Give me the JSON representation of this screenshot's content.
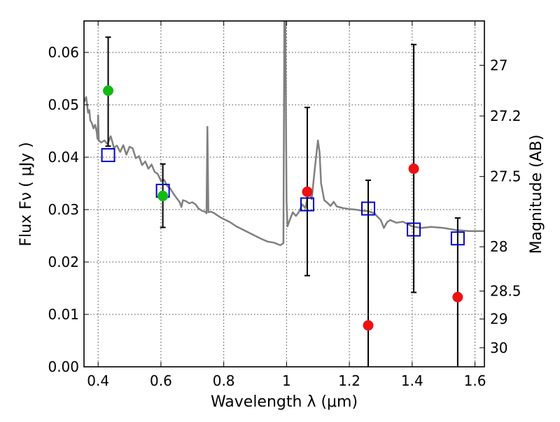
{
  "chart_data": {
    "type": "scatter",
    "xlabel": "Wavelength  λ (μm)",
    "ylabel": "Flux  Fν ( μJy )",
    "y2label": "Magnitude (AB)",
    "xlim": [
      0.355,
      1.63
    ],
    "ylim": [
      0.0,
      0.066
    ],
    "x_ticks": [
      "0.4",
      "0.6",
      "0.8",
      "1",
      "1.2",
      "1.4",
      "1.6"
    ],
    "y_ticks": [
      "0.00",
      "0.01",
      "0.02",
      "0.03",
      "0.04",
      "0.05",
      "0.06"
    ],
    "y2_ticks": [
      "27",
      "27.2",
      "27.5",
      "28",
      "28.5",
      "29",
      "30"
    ],
    "grid": true,
    "colors": {
      "spectrum": "#808080",
      "model_squares": "#0000cc",
      "green_points": "#11bb11",
      "red_points": "#ee1111",
      "errorbars": "#000000"
    },
    "series": [],
    "spectrum": [
      [
        0.355,
        0.0505
      ],
      [
        0.362,
        0.0515
      ],
      [
        0.368,
        0.0485
      ],
      [
        0.372,
        0.049
      ],
      [
        0.375,
        0.047
      ],
      [
        0.38,
        0.0465
      ],
      [
        0.385,
        0.0455
      ],
      [
        0.39,
        0.0462
      ],
      [
        0.395,
        0.045
      ],
      [
        0.398,
        0.0435
      ],
      [
        0.4,
        0.048
      ],
      [
        0.402,
        0.0432
      ],
      [
        0.41,
        0.0428
      ],
      [
        0.42,
        0.0432
      ],
      [
        0.43,
        0.0425
      ],
      [
        0.44,
        0.044
      ],
      [
        0.445,
        0.043
      ],
      [
        0.45,
        0.0418
      ],
      [
        0.46,
        0.0422
      ],
      [
        0.47,
        0.041
      ],
      [
        0.48,
        0.0423
      ],
      [
        0.49,
        0.0405
      ],
      [
        0.5,
        0.042
      ],
      [
        0.51,
        0.0417
      ],
      [
        0.52,
        0.0398
      ],
      [
        0.53,
        0.0402
      ],
      [
        0.54,
        0.0385
      ],
      [
        0.55,
        0.0392
      ],
      [
        0.56,
        0.0378
      ],
      [
        0.57,
        0.0386
      ],
      [
        0.58,
        0.0372
      ],
      [
        0.59,
        0.0368
      ],
      [
        0.6,
        0.0355
      ],
      [
        0.61,
        0.0357
      ],
      [
        0.62,
        0.0345
      ],
      [
        0.63,
        0.034
      ],
      [
        0.64,
        0.033
      ],
      [
        0.65,
        0.0322
      ],
      [
        0.66,
        0.0314
      ],
      [
        0.665,
        0.0305
      ],
      [
        0.67,
        0.0318
      ],
      [
        0.68,
        0.0316
      ],
      [
        0.69,
        0.0312
      ],
      [
        0.7,
        0.0314
      ],
      [
        0.71,
        0.031
      ],
      [
        0.72,
        0.0302
      ],
      [
        0.73,
        0.0298
      ],
      [
        0.74,
        0.0296
      ],
      [
        0.745,
        0.0293
      ],
      [
        0.748,
        0.0458
      ],
      [
        0.751,
        0.0295
      ],
      [
        0.76,
        0.0296
      ],
      [
        0.77,
        0.0293
      ],
      [
        0.78,
        0.0289
      ],
      [
        0.79,
        0.0285
      ],
      [
        0.8,
        0.0282
      ],
      [
        0.82,
        0.0276
      ],
      [
        0.84,
        0.0268
      ],
      [
        0.86,
        0.0262
      ],
      [
        0.88,
        0.0256
      ],
      [
        0.9,
        0.025
      ],
      [
        0.92,
        0.0244
      ],
      [
        0.94,
        0.0239
      ],
      [
        0.96,
        0.0237
      ],
      [
        0.98,
        0.0232
      ],
      [
        0.99,
        0.0236
      ],
      [
        0.993,
        0.066
      ],
      [
        0.996,
        0.066
      ],
      [
        1.0,
        0.0315
      ],
      [
        1.003,
        0.0268
      ],
      [
        1.01,
        0.028
      ],
      [
        1.02,
        0.0295
      ],
      [
        1.03,
        0.0288
      ],
      [
        1.04,
        0.0296
      ],
      [
        1.05,
        0.031
      ],
      [
        1.06,
        0.0303
      ],
      [
        1.07,
        0.0335
      ],
      [
        1.08,
        0.032
      ],
      [
        1.09,
        0.0378
      ],
      [
        1.1,
        0.0432
      ],
      [
        1.105,
        0.041
      ],
      [
        1.11,
        0.035
      ],
      [
        1.12,
        0.0318
      ],
      [
        1.13,
        0.0313
      ],
      [
        1.14,
        0.0307
      ],
      [
        1.15,
        0.0315
      ],
      [
        1.16,
        0.0306
      ],
      [
        1.18,
        0.0303
      ],
      [
        1.2,
        0.0301
      ],
      [
        1.22,
        0.03
      ],
      [
        1.24,
        0.0298
      ],
      [
        1.26,
        0.0297
      ],
      [
        1.28,
        0.0293
      ],
      [
        1.29,
        0.0286
      ],
      [
        1.3,
        0.028
      ],
      [
        1.31,
        0.0265
      ],
      [
        1.32,
        0.0276
      ],
      [
        1.33,
        0.028
      ],
      [
        1.35,
        0.0275
      ],
      [
        1.37,
        0.0277
      ],
      [
        1.4,
        0.0268
      ],
      [
        1.43,
        0.0265
      ],
      [
        1.46,
        0.0267
      ],
      [
        1.5,
        0.0265
      ],
      [
        1.54,
        0.0261
      ],
      [
        1.58,
        0.0259
      ],
      [
        1.63,
        0.0259
      ]
    ],
    "model_squares": [
      {
        "x": 0.432,
        "y": 0.0404
      },
      {
        "x": 0.606,
        "y": 0.0336
      },
      {
        "x": 1.066,
        "y": 0.031
      },
      {
        "x": 1.26,
        "y": 0.0302
      },
      {
        "x": 1.405,
        "y": 0.0262
      },
      {
        "x": 1.545,
        "y": 0.0245
      }
    ],
    "observed_points": [
      {
        "x": 0.432,
        "y": 0.0527,
        "yerr_low": 0.0421,
        "yerr_high": 0.0629,
        "color": "green"
      },
      {
        "x": 0.606,
        "y": 0.0326,
        "yerr_low": 0.0266,
        "yerr_high": 0.0387,
        "color": "green"
      },
      {
        "x": 1.066,
        "y": 0.0334,
        "yerr_low": 0.0174,
        "yerr_high": 0.0495,
        "color": "red"
      },
      {
        "x": 1.26,
        "y": 0.0079,
        "yerr_low": 0.0,
        "yerr_high": 0.0356,
        "color": "red"
      },
      {
        "x": 1.405,
        "y": 0.0378,
        "yerr_low": 0.0142,
        "yerr_high": 0.0615,
        "color": "red"
      },
      {
        "x": 1.545,
        "y": 0.0133,
        "yerr_low": 0.0,
        "yerr_high": 0.0284,
        "color": "red"
      }
    ]
  }
}
